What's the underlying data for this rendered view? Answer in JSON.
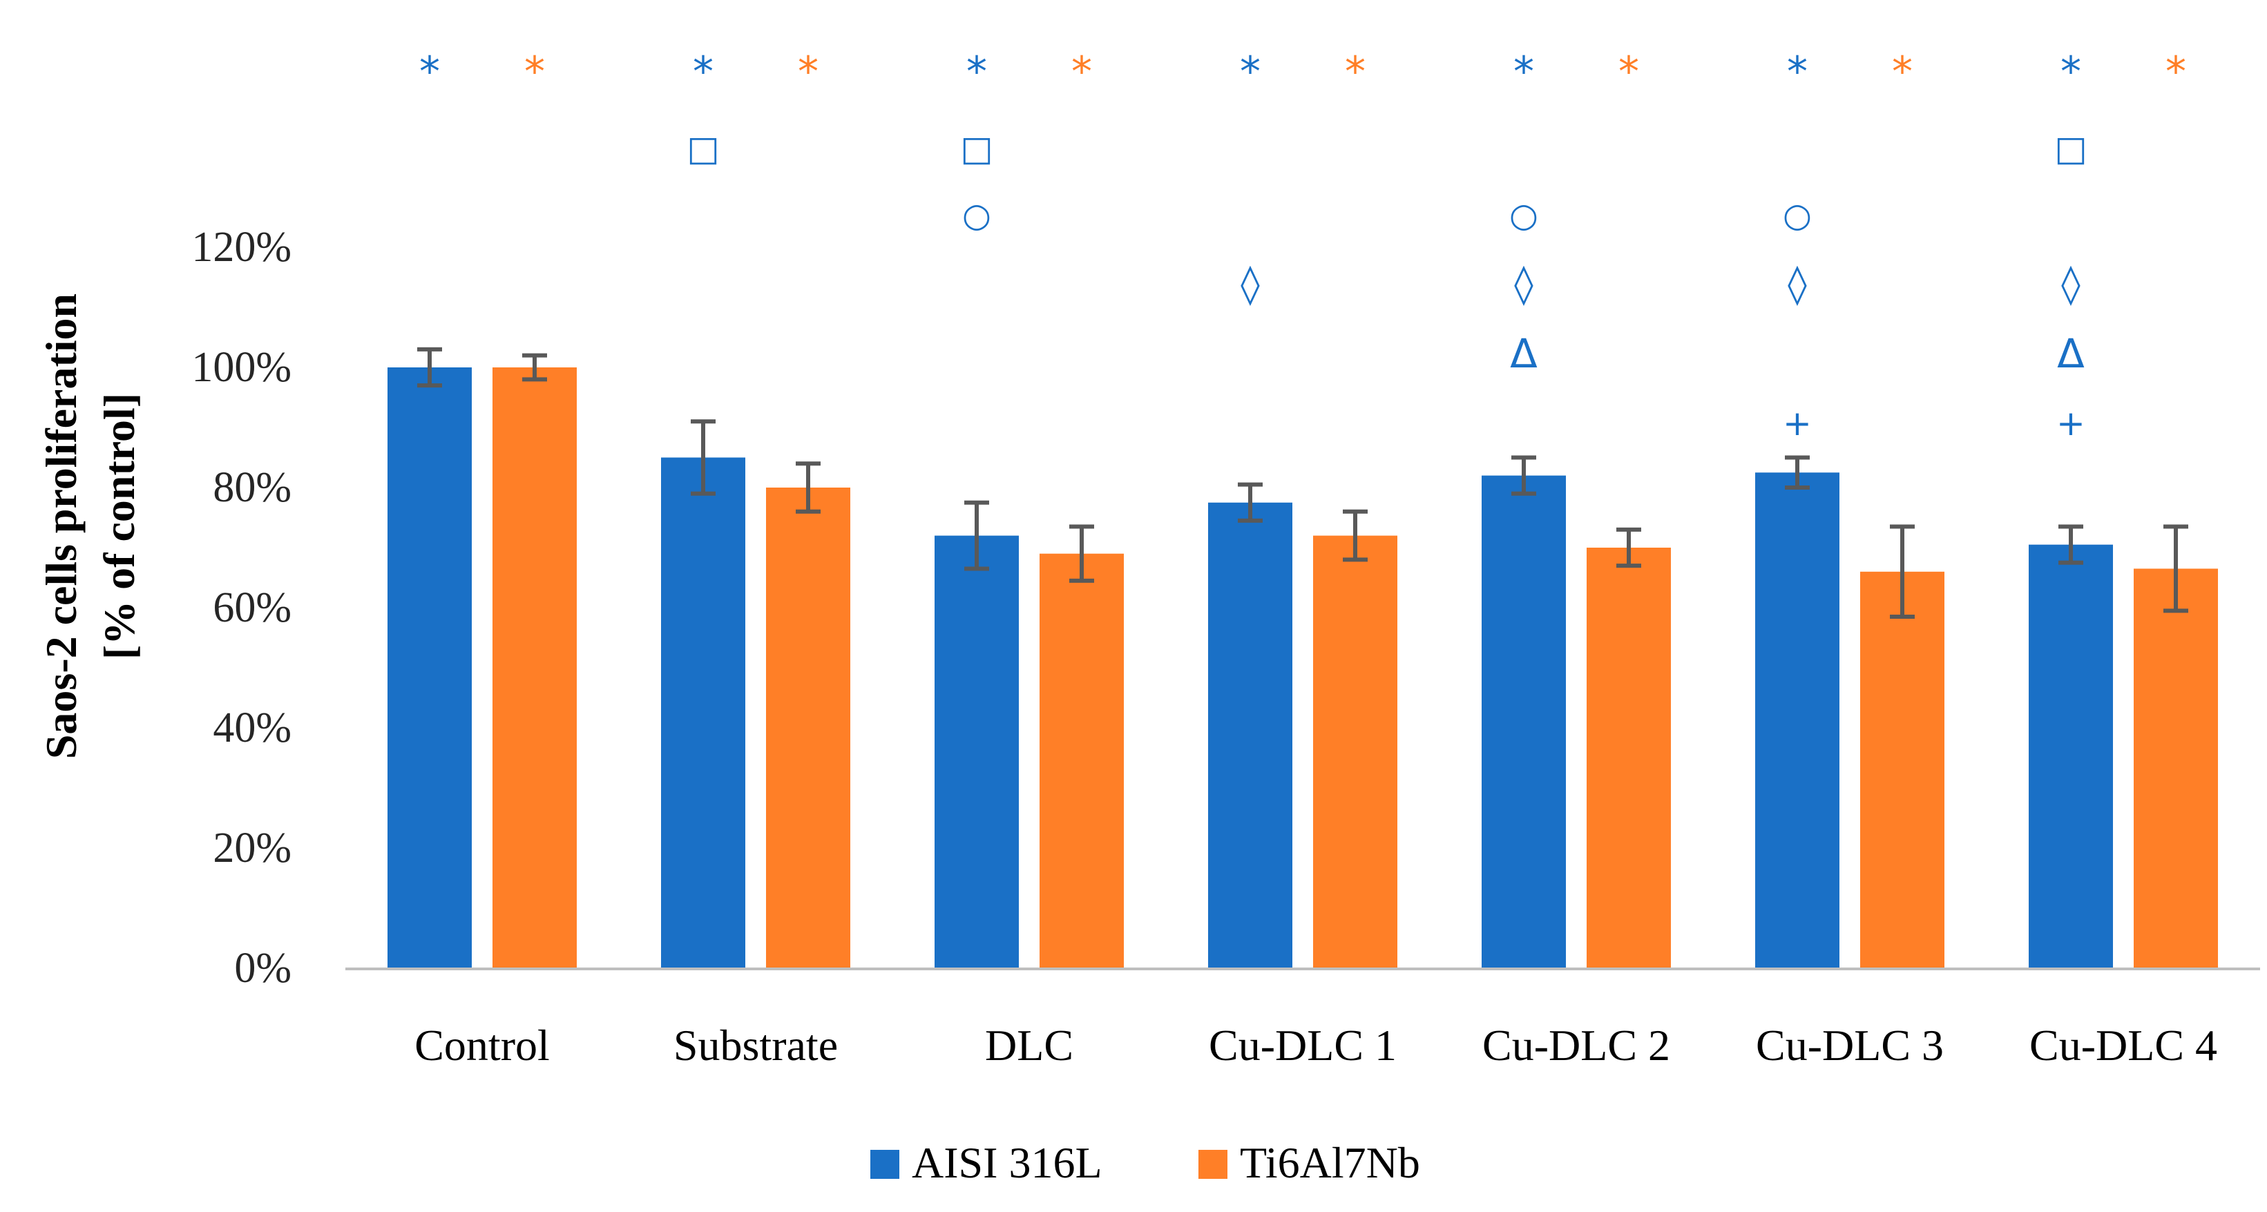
{
  "chart_data": {
    "type": "bar",
    "ylabel": [
      "Saos-2 cells proliferation",
      "[% of control]"
    ],
    "xlabel": "",
    "ylim": [
      0,
      1.2
    ],
    "yticks": [
      0,
      0.2,
      0.4,
      0.6,
      0.8,
      1.0,
      1.2
    ],
    "ytick_labels": [
      "0%",
      "20%",
      "40%",
      "60%",
      "80%",
      "100%",
      "120%"
    ],
    "grid": false,
    "legend_position": "bottom",
    "categories": [
      "Control",
      "Substrate",
      "DLC",
      "Cu-DLC 1",
      "Cu-DLC 2",
      "Cu-DLC 3",
      "Cu-DLC 4"
    ],
    "series": [
      {
        "name": "AISI 316L",
        "color": "#1A70C6",
        "values": [
          1.0,
          0.85,
          0.72,
          0.775,
          0.82,
          0.825,
          0.705
        ],
        "errors": [
          0.03,
          0.06,
          0.055,
          0.03,
          0.03,
          0.025,
          0.03
        ]
      },
      {
        "name": "Ti6Al7Nb",
        "color": "#FF7F27",
        "values": [
          1.0,
          0.8,
          0.69,
          0.72,
          0.7,
          0.66,
          0.665
        ],
        "errors": [
          0.02,
          0.04,
          0.045,
          0.04,
          0.03,
          0.075,
          0.07
        ]
      }
    ],
    "error_bar_color": "#595959",
    "axis_color": "#BFBFBF",
    "significance_markers": [
      {
        "category": "Control",
        "series": "AISI 316L",
        "symbols": [
          "*"
        ]
      },
      {
        "category": "Control",
        "series": "Ti6Al7Nb",
        "symbols": [
          "*"
        ]
      },
      {
        "category": "Substrate",
        "series": "AISI 316L",
        "symbols": [
          "*",
          "□"
        ]
      },
      {
        "category": "Substrate",
        "series": "Ti6Al7Nb",
        "symbols": [
          "*"
        ]
      },
      {
        "category": "DLC",
        "series": "AISI 316L",
        "symbols": [
          "*",
          "□",
          "○"
        ]
      },
      {
        "category": "DLC",
        "series": "Ti6Al7Nb",
        "symbols": [
          "*"
        ]
      },
      {
        "category": "Cu-DLC 1",
        "series": "AISI 316L",
        "symbols": [
          "*",
          "◊"
        ]
      },
      {
        "category": "Cu-DLC 1",
        "series": "Ti6Al7Nb",
        "symbols": [
          "*"
        ]
      },
      {
        "category": "Cu-DLC 2",
        "series": "AISI 316L",
        "symbols": [
          "*",
          "○",
          "◊",
          "Δ"
        ]
      },
      {
        "category": "Cu-DLC 2",
        "series": "Ti6Al7Nb",
        "symbols": [
          "*"
        ]
      },
      {
        "category": "Cu-DLC 3",
        "series": "AISI 316L",
        "symbols": [
          "*",
          "○",
          "◊",
          "+"
        ]
      },
      {
        "category": "Cu-DLC 3",
        "series": "Ti6Al7Nb",
        "symbols": [
          "*"
        ]
      },
      {
        "category": "Cu-DLC 4",
        "series": "AISI 316L",
        "symbols": [
          "*",
          "□",
          "◊",
          "Δ",
          "+"
        ]
      },
      {
        "category": "Cu-DLC 4",
        "series": "Ti6Al7Nb",
        "symbols": [
          "*"
        ]
      }
    ]
  }
}
